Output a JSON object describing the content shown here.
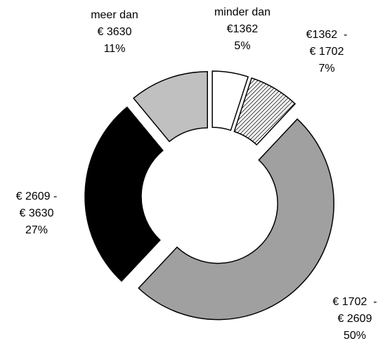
{
  "chart_data": {
    "type": "donut",
    "categories": [
      "minder dan\n€1362",
      "€1362  -\n€ 1702",
      "€ 1702  -\n€ 2609",
      "€ 2609 -\n€ 3630",
      "meer dan\n€ 3630"
    ],
    "values": [
      5,
      7,
      50,
      27,
      11
    ],
    "value_labels": [
      "5%",
      "7%",
      "50%",
      "27%",
      "11%"
    ],
    "colors": [
      "#ffffff",
      "hatch",
      "#a0a0a0",
      "#000000",
      "#c0c0c0"
    ]
  }
}
